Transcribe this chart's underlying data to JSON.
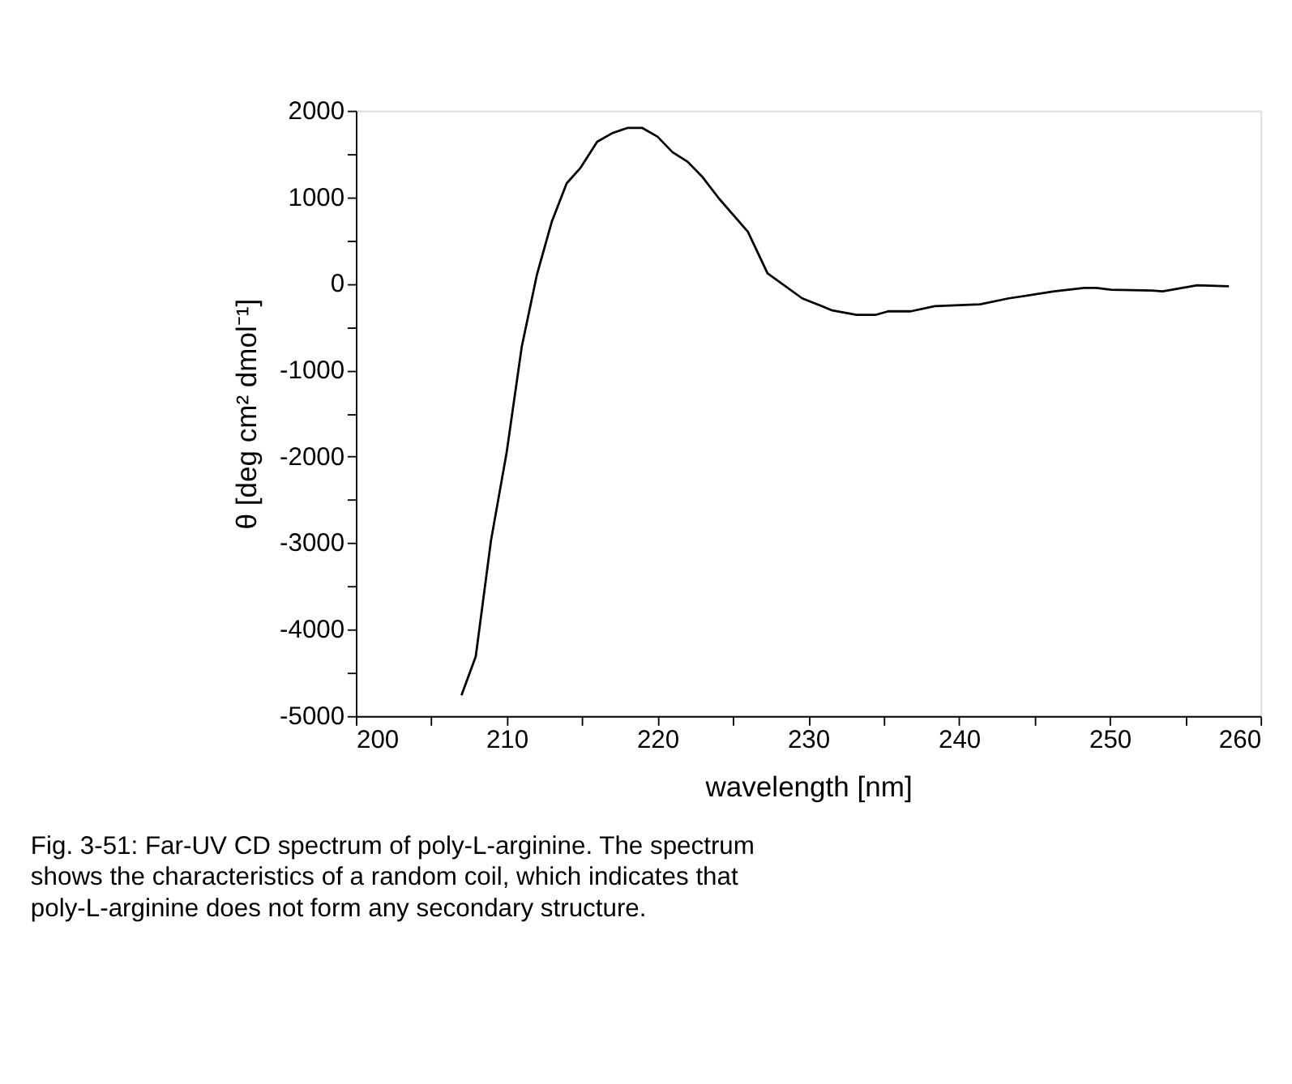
{
  "chart_data": {
    "type": "line",
    "xlabel": "wavelength [nm]",
    "ylabel": "θ [deg cm² dmol⁻¹]",
    "x": [
      207.0,
      207.95,
      208.96,
      210.0,
      211.0,
      212.0,
      213.0,
      213.98,
      214.9,
      216.0,
      217.0,
      218.0,
      219.0,
      220.0,
      221.0,
      222.0,
      223.0,
      224.1,
      226.0,
      227.3,
      229.6,
      231.6,
      233.2,
      234.5,
      235.3,
      236.8,
      238.4,
      241.4,
      243.3,
      246.3,
      248.3,
      249.1,
      250.1,
      252.8,
      253.5,
      255.8,
      257.9
    ],
    "series": [
      {
        "color": "#000000",
        "values": [
          -4760,
          -4310,
          -2970,
          -1950,
          -730,
          100,
          720,
          1160,
          1340,
          1640,
          1740,
          1800,
          1800,
          1700,
          1520,
          1410,
          1230,
          980,
          600,
          120,
          -170,
          -310,
          -360,
          -360,
          -320,
          -320,
          -260,
          -240,
          -170,
          -90,
          -50,
          -50,
          -70,
          -80,
          -90,
          -20,
          -30
        ]
      }
    ],
    "xlim": [
      200,
      260
    ],
    "xticks": [
      200,
      {
        "value": 205,
        "label": null
      },
      210,
      {
        "value": 215,
        "label": null
      },
      220,
      {
        "value": 225,
        "label": null
      },
      230,
      {
        "value": 235,
        "label": null
      },
      240,
      {
        "value": 245,
        "label": null
      },
      250,
      {
        "value": 255,
        "label": null
      },
      260
    ],
    "ylim": [
      -5000,
      2000
    ],
    "yticks": [
      -5000,
      {
        "value": -4500,
        "label": null
      },
      -4000,
      {
        "value": -3500,
        "label": null
      },
      -3000,
      {
        "value": -2500,
        "label": null
      },
      -2000,
      {
        "value": -1500,
        "label": null
      },
      -1000,
      {
        "value": -500,
        "label": null
      },
      0,
      {
        "value": 500,
        "label": null
      },
      1000,
      {
        "value": 1500,
        "label": null
      },
      2000
    ],
    "grid": false,
    "marker": "none",
    "line_style": "solid",
    "annotations": [
      "Fig. 3-51:  Far-UV CD spectrum of poly-L-arginine. The spectrum shows the characteristics of a random coil, which indicates that poly-L-arginine does not form any secondary structure."
    ]
  }
}
